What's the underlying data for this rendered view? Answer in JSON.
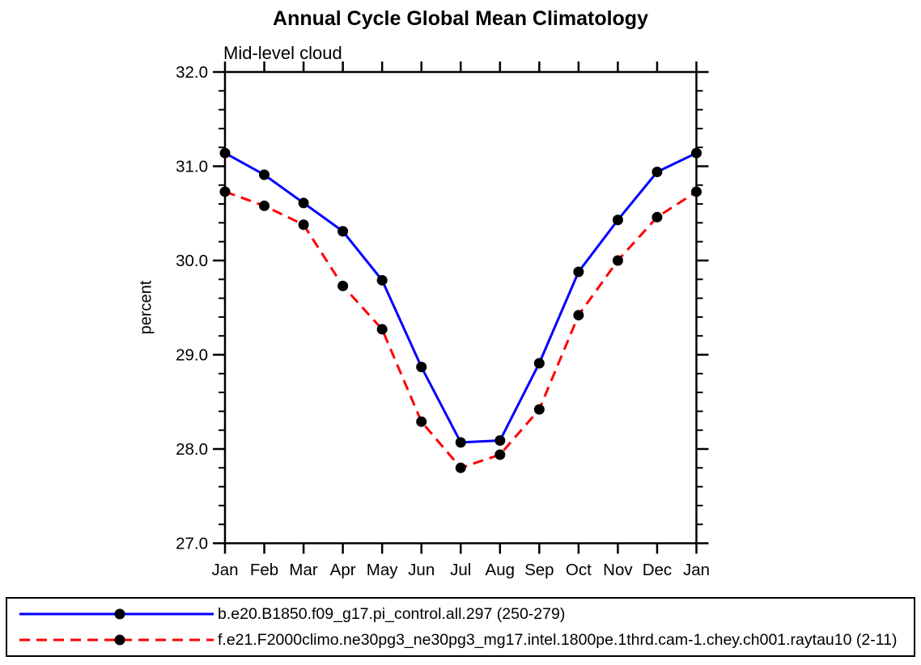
{
  "title": "Annual Cycle Global Mean Climatology",
  "subtitle": "Mid-level cloud",
  "ylabel": "percent",
  "chart_data": {
    "type": "line",
    "x_categories": [
      "Jan",
      "Feb",
      "Mar",
      "Apr",
      "May",
      "Jun",
      "Jul",
      "Aug",
      "Sep",
      "Oct",
      "Nov",
      "Dec",
      "Jan"
    ],
    "ylim": [
      27.0,
      32.0
    ],
    "ytick_labels": [
      "27.0",
      "28.0",
      "29.0",
      "30.0",
      "31.0",
      "32.0"
    ],
    "ytick_minor_step": 0.2,
    "grid": false,
    "legend_position": "bottom-outside-box",
    "axis_color": "#000000",
    "marker_color": "#000000",
    "series": [
      {
        "name": "b.e20.B1850.f09_g17.pi_control.all.297 (250-279)",
        "color": "#0000ff",
        "line_style": "solid",
        "marker": "filled-circle",
        "values": [
          31.14,
          30.91,
          30.61,
          30.31,
          29.79,
          28.87,
          28.07,
          28.09,
          28.91,
          29.88,
          30.43,
          30.94,
          31.14
        ]
      },
      {
        "name": "f.e21.F2000climo.ne30pg3_ne30pg3_mg17.intel.1800pe.1thrd.cam-1.chey.ch001.raytau10 (2-11)",
        "color": "#ff0000",
        "line_style": "dashed",
        "marker": "filled-circle",
        "values": [
          30.73,
          30.58,
          30.38,
          29.73,
          29.27,
          28.29,
          27.8,
          27.94,
          28.42,
          29.42,
          30.0,
          30.46,
          30.73
        ]
      }
    ]
  }
}
